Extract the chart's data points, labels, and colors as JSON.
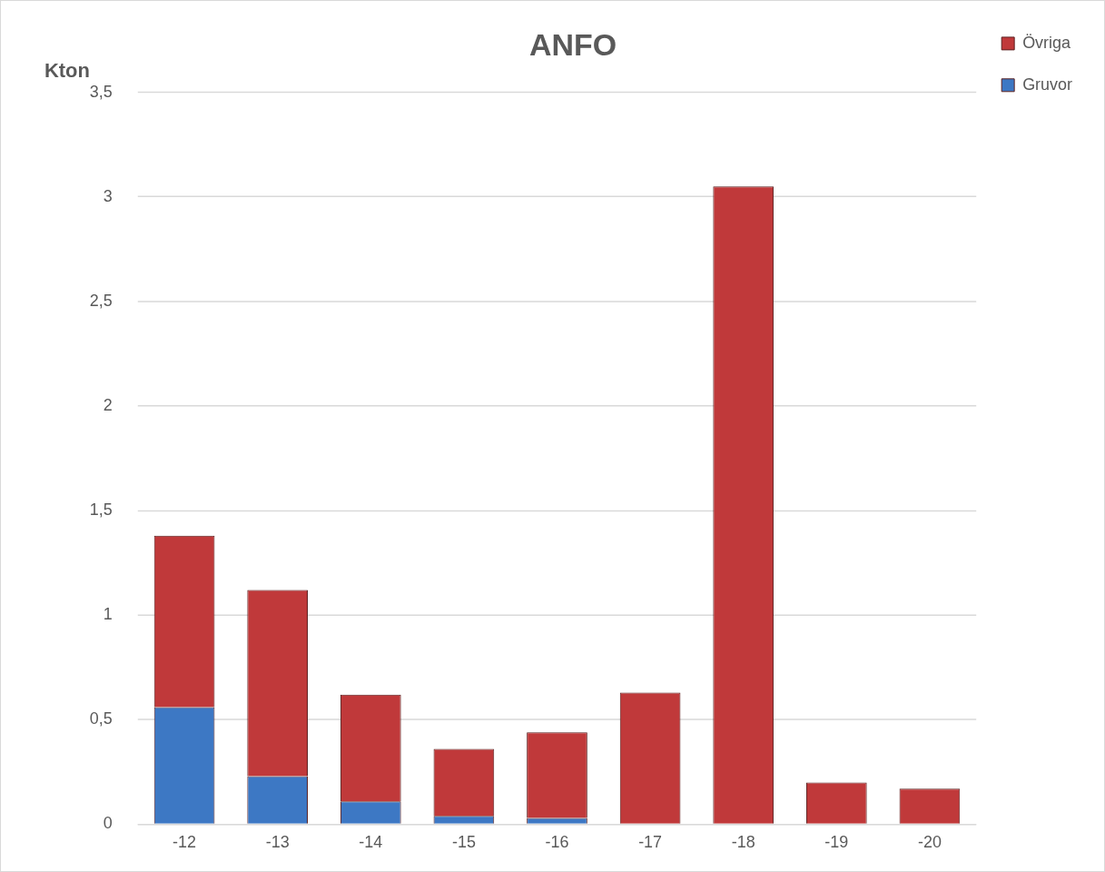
{
  "chart_data": {
    "type": "bar",
    "title": "ANFO",
    "ylabel": "Kton",
    "stacked": true,
    "legend": "top right",
    "grid": "y",
    "categories": [
      "-12",
      "-13",
      "-14",
      "-15",
      "-16",
      "-17",
      "-18",
      "-19",
      "-20"
    ],
    "series": [
      {
        "name": "Gruvor",
        "color": "#3d78c4",
        "values": [
          0.56,
          0.23,
          0.11,
          0.04,
          0.03,
          0,
          0,
          0,
          0
        ]
      },
      {
        "name": "Övriga",
        "color": "#c0393a",
        "values": [
          0.82,
          0.89,
          0.51,
          0.32,
          0.41,
          0.63,
          3.05,
          0.2,
          0.17
        ]
      }
    ],
    "ylim": [
      0,
      3.5
    ],
    "yticks": [
      {
        "value": 0,
        "label": "0"
      },
      {
        "value": 0.5,
        "label": "0,5"
      },
      {
        "value": 1,
        "label": "1"
      },
      {
        "value": 1.5,
        "label": "1,5"
      },
      {
        "value": 2,
        "label": "2"
      },
      {
        "value": 2.5,
        "label": "2,5"
      },
      {
        "value": 3,
        "label": "3"
      },
      {
        "value": 3.5,
        "label": "3,5"
      }
    ]
  }
}
